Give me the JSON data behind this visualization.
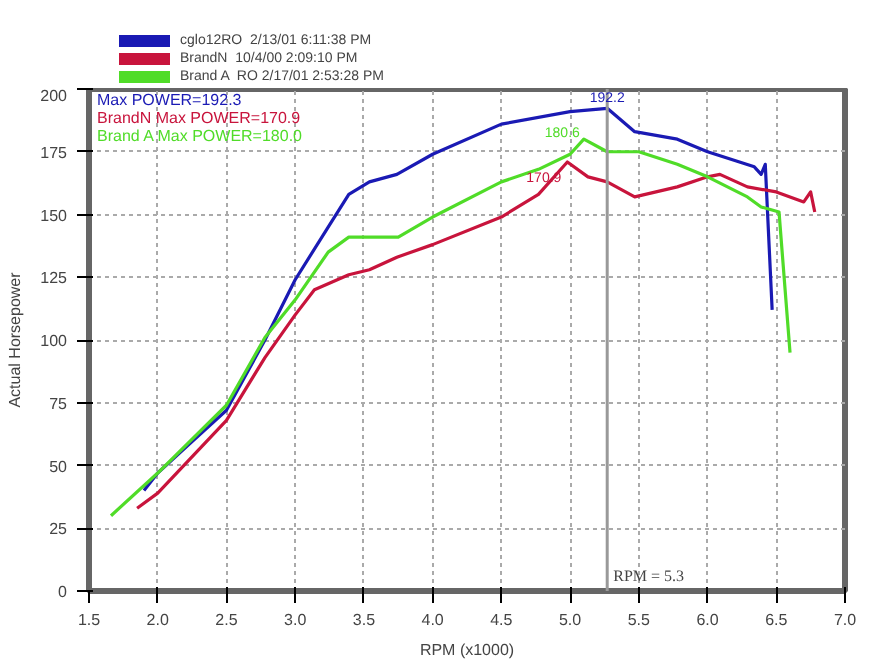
{
  "chart_data": {
    "type": "line",
    "xlabel": "RPM (x1000)",
    "ylabel": "Actual Horsepower",
    "xlim": [
      1.5,
      7.0
    ],
    "ylim": [
      0,
      200
    ],
    "xticks": [
      1.5,
      {
        "value": 2.0,
        "label": "2.0"
      },
      2.5,
      {
        "value": 3.0,
        "label": "3.0"
      },
      3.5,
      {
        "value": 4.0,
        "label": "4.0"
      },
      4.5,
      {
        "value": 5.0,
        "label": "5.0"
      },
      5.5,
      {
        "value": 6.0,
        "label": "6.0"
      },
      6.5,
      {
        "value": 7.0,
        "label": "7.0"
      }
    ],
    "yticks": [
      0,
      25,
      50,
      75,
      100,
      125,
      150,
      175,
      200
    ],
    "grid": true,
    "legend": "top",
    "line_style": "solid",
    "series": [
      {
        "name": "cglo12RO  2/13/01 6:11:38 PM",
        "color": "#1a1ab4",
        "x": [
          1.9,
          2.0,
          2.22,
          2.5,
          2.78,
          3.0,
          3.24,
          3.39,
          3.54,
          3.74,
          4.0,
          4.5,
          5.0,
          5.27,
          5.47,
          5.78,
          6.0,
          6.34,
          6.39,
          6.42,
          6.47
        ],
        "values": [
          40,
          47,
          58,
          72,
          100,
          124,
          145,
          158,
          163,
          166,
          174,
          186,
          191,
          192.3,
          183,
          180,
          175,
          169,
          166,
          170,
          112
        ]
      },
      {
        "name": "BrandN  10/4/00 2:09:10 PM",
        "color": "#c8143c",
        "x": [
          1.85,
          2.0,
          2.5,
          2.78,
          3.0,
          3.14,
          3.39,
          3.54,
          3.74,
          4.0,
          4.5,
          4.77,
          4.98,
          5.13,
          5.27,
          5.47,
          5.78,
          6.0,
          6.09,
          6.29,
          6.5,
          6.7,
          6.75,
          6.78
        ],
        "values": [
          33,
          39,
          68,
          93,
          110,
          120,
          126,
          128,
          133,
          138,
          149,
          158,
          170.9,
          165,
          163,
          157,
          161,
          165,
          166,
          161,
          159,
          155,
          159,
          151
        ]
      },
      {
        "name": "Brand A  RO 2/17/01 2:53:28 PM",
        "color": "#50dc28",
        "x": [
          1.66,
          2.0,
          2.5,
          2.78,
          3.0,
          3.24,
          3.39,
          3.54,
          3.75,
          4.0,
          4.5,
          4.77,
          5.0,
          5.1,
          5.27,
          5.5,
          5.78,
          6.0,
          6.29,
          6.39,
          6.52,
          6.6
        ],
        "values": [
          30,
          47,
          74,
          101,
          116,
          135,
          141,
          141,
          141,
          149,
          163,
          168,
          174,
          180.0,
          175,
          175,
          170,
          165,
          157,
          153,
          151,
          95
        ]
      }
    ],
    "ref_lines": [
      {
        "axis": "x",
        "value": 5.27,
        "label": "RPM = 5.3",
        "color": "#999999"
      }
    ],
    "annotations": [
      "Max POWER=192.3",
      "BrandN  Max POWER=170.9",
      "Brand A  Max POWER=180.0",
      {
        "text": "192.2",
        "x": 5.27,
        "y": 192.3
      },
      {
        "text": "170.9",
        "x": 4.98,
        "y": 170.9
      },
      {
        "text": "180.6",
        "x": 5.1,
        "y": 180.0
      }
    ]
  }
}
